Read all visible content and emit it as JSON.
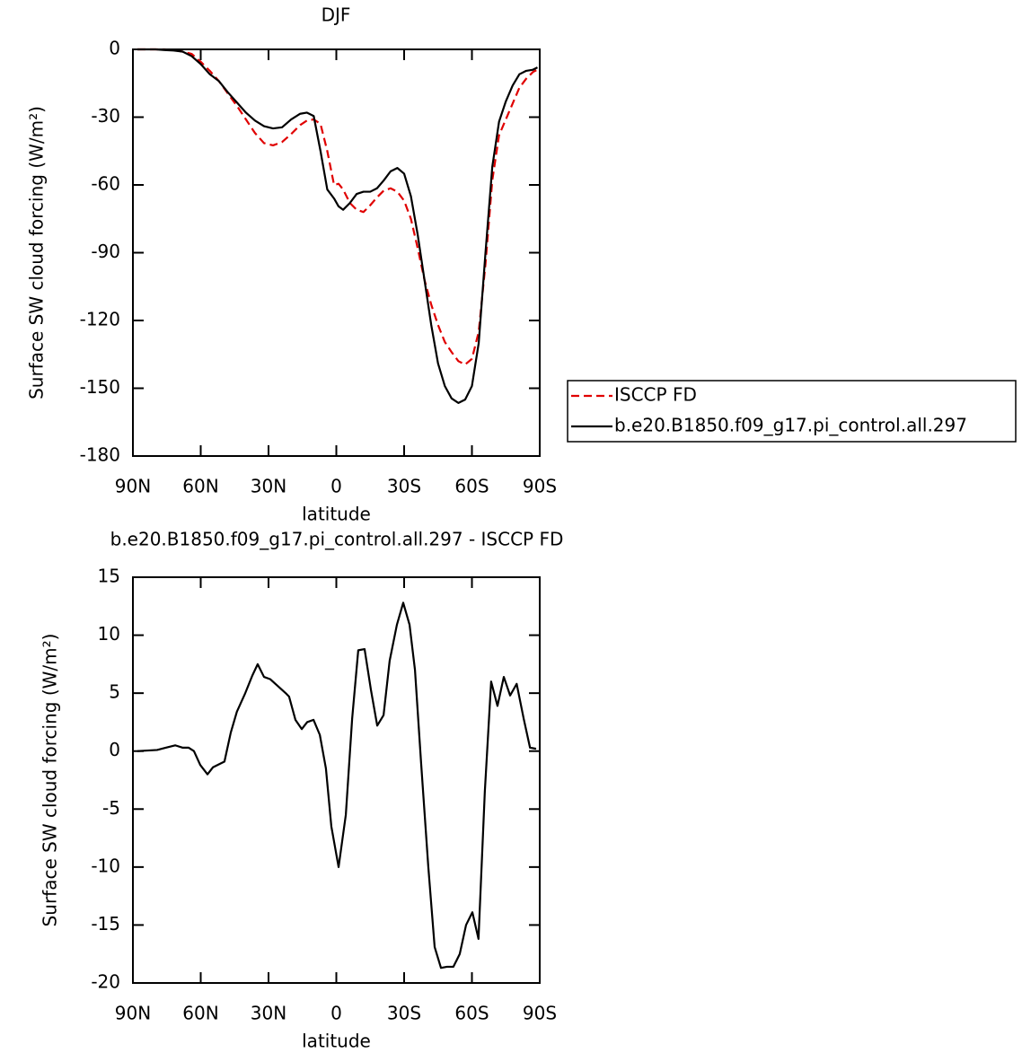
{
  "chart_data": [
    {
      "type": "line",
      "title": "DJF",
      "xlabel": "latitude",
      "ylabel": "Surface SW cloud forcing (W/m²)",
      "x": [
        88,
        84,
        80,
        76,
        72,
        68,
        64,
        60,
        56,
        52,
        48,
        44,
        40,
        36,
        32,
        28,
        24,
        20,
        16,
        13,
        10,
        7,
        4,
        1,
        -1,
        -3,
        -6,
        -9,
        -12,
        -15,
        -18,
        -21,
        -24,
        -27,
        -30,
        -33,
        -36,
        -39,
        -42,
        -45,
        -48,
        -51,
        -54,
        -57,
        -60,
        -63,
        -66,
        -69,
        -72,
        -75,
        -78,
        -81,
        -84,
        -87,
        -89
      ],
      "series": [
        {
          "name": "ISCCP FD",
          "color": "#e00000",
          "dash": "dashed",
          "values": [
            0,
            0,
            0,
            0,
            -0.3,
            -1,
            -2,
            -5.5,
            -9.5,
            -14,
            -19.5,
            -25,
            -31,
            -37,
            -41.5,
            -42.5,
            -41,
            -37.5,
            -33.5,
            -31.5,
            -31,
            -33,
            -45,
            -60,
            -59.5,
            -62,
            -68,
            -71,
            -72,
            -69,
            -65.5,
            -62.5,
            -61.5,
            -63,
            -67,
            -75,
            -88,
            -102,
            -113,
            -122,
            -129.5,
            -134,
            -138,
            -139.5,
            -137,
            -125,
            -95,
            -58,
            -38,
            -31,
            -24,
            -17,
            -13,
            -10,
            -9
          ]
        },
        {
          "name": "b.e20.B1850.f09_g17.pi_control.all.297",
          "color": "#000000",
          "dash": "solid",
          "values": [
            0,
            0,
            0,
            -0.3,
            -0.5,
            -1,
            -3,
            -6.5,
            -11,
            -14,
            -19,
            -23.5,
            -28,
            -31.5,
            -34,
            -35,
            -34.5,
            -31,
            -28.5,
            -28,
            -29.5,
            -45,
            -62,
            -66,
            -69.5,
            -71,
            -68,
            -64,
            -63,
            -63,
            -61.5,
            -58,
            -54,
            -52.5,
            -55,
            -65,
            -82,
            -102,
            -122,
            -139,
            -149,
            -154.5,
            -156.5,
            -155,
            -149,
            -130,
            -90,
            -52,
            -32,
            -23,
            -16,
            -11,
            -9.5,
            -9,
            -8
          ]
        }
      ],
      "xlim": [
        90,
        -90
      ],
      "xticks": [
        {
          "value": 90,
          "label": "90N"
        },
        {
          "value": 60,
          "label": "60N"
        },
        {
          "value": 30,
          "label": "30N"
        },
        0,
        {
          "value": -30,
          "label": "30S"
        },
        {
          "value": -60,
          "label": "60S"
        },
        {
          "value": -90,
          "label": "90S"
        }
      ],
      "ylim": [
        -180,
        0
      ],
      "yticks": [
        0,
        -30,
        -60,
        -90,
        -120,
        -150,
        -180
      ],
      "legend": "right"
    },
    {
      "type": "line",
      "title": "b.e20.B1850.f09_g17.pi_control.all.297 - ISCCP FD",
      "xlabel": "latitude",
      "ylabel": "Surface SW cloud forcing (W/m²)",
      "x": [
        88.0,
        79.3,
        75.3,
        71.3,
        68.1,
        65.4,
        63.0,
        60.2,
        57.0,
        54.6,
        49.5,
        46.7,
        44.0,
        40.3,
        37.2,
        34.8,
        32.0,
        29.2,
        26.4,
        22.4,
        20.9,
        18.1,
        15.3,
        12.9,
        10.1,
        7.3,
        4.6,
        2.2,
        -1.0,
        -4.2,
        -7.0,
        -9.7,
        -12.5,
        -15.3,
        -18.1,
        -20.9,
        -23.6,
        -26.8,
        -29.6,
        -32.4,
        -34.8,
        -37.5,
        -40.7,
        -43.5,
        -46.3,
        -49.0,
        -51.8,
        -54.6,
        -57.4,
        -60.2,
        -62.9,
        -65.7,
        -68.5,
        -71.3,
        -74.1,
        -76.9,
        -79.8,
        -82.9,
        -85.7,
        -88.4
      ],
      "series": [
        {
          "color": "#000000",
          "dash": "solid",
          "values": [
            0,
            0.1,
            0.3,
            0.5,
            0.3,
            0.3,
            0,
            -1.2,
            -2.0,
            -1.4,
            -0.9,
            1.6,
            3.4,
            5.0,
            6.5,
            7.5,
            6.4,
            6.2,
            5.7,
            5.0,
            4.7,
            2.7,
            1.9,
            2.5,
            2.7,
            1.4,
            -1.5,
            -6.5,
            -10,
            -5.5,
            2.8,
            8.7,
            8.8,
            5.3,
            2.2,
            3.1,
            7.8,
            10.9,
            12.8,
            10.9,
            7.0,
            -1,
            -10,
            -16.9,
            -18.7,
            -18.6,
            -18.6,
            -17.5,
            -15,
            -13.9,
            -16.2,
            -3.5,
            6.0,
            3.9,
            6.4,
            4.8,
            5.8,
            2.8,
            0.3,
            0.2
          ]
        }
      ],
      "xlim": [
        90,
        -90
      ],
      "xticks": [
        {
          "value": 90,
          "label": "90N"
        },
        {
          "value": 60,
          "label": "60N"
        },
        {
          "value": 30,
          "label": "30N"
        },
        0,
        {
          "value": -30,
          "label": "30S"
        },
        {
          "value": -60,
          "label": "60S"
        },
        {
          "value": -90,
          "label": "90S"
        }
      ],
      "ylim": [
        -20,
        15
      ],
      "yticks": [
        15,
        10,
        5,
        0,
        -5,
        -10,
        -15,
        -20
      ]
    }
  ]
}
